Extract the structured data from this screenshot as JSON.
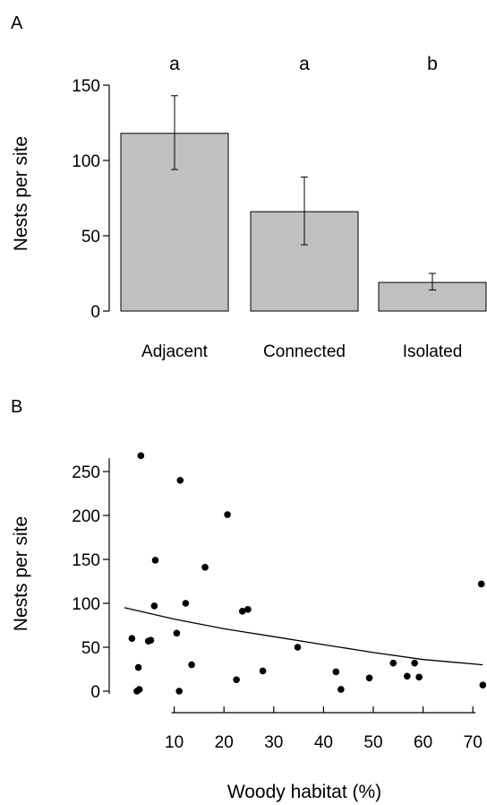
{
  "chart_data": [
    {
      "panel": "A",
      "type": "bar",
      "categories": [
        "Adjacent",
        "Connected",
        "Isolated"
      ],
      "values": [
        118,
        66,
        19
      ],
      "error_low": [
        94,
        44,
        14
      ],
      "error_high": [
        143,
        89,
        25
      ],
      "significance_letters": [
        "a",
        "a",
        "b"
      ],
      "ylabel": "Nests per site",
      "xlabel": "",
      "ylim": [
        0,
        150
      ],
      "yticks": [
        0,
        50,
        100,
        150
      ],
      "bar_color": "#c0c0c0",
      "grid": false
    },
    {
      "panel": "B",
      "type": "scatter",
      "xlabel": "Woody habitat (%)",
      "ylabel": "Nests per site",
      "xlim": [
        0,
        70
      ],
      "ylim": [
        0,
        250
      ],
      "xticks": [
        10,
        20,
        30,
        40,
        50,
        60,
        70
      ],
      "yticks": [
        0,
        50,
        100,
        150,
        200,
        250
      ],
      "points": [
        {
          "x": 1.5,
          "y": 60
        },
        {
          "x": 2.5,
          "y": 0
        },
        {
          "x": 2.8,
          "y": 27
        },
        {
          "x": 3.0,
          "y": 2
        },
        {
          "x": 3.3,
          "y": 268
        },
        {
          "x": 4.8,
          "y": 57
        },
        {
          "x": 5.3,
          "y": 58
        },
        {
          "x": 6.0,
          "y": 97
        },
        {
          "x": 6.2,
          "y": 149
        },
        {
          "x": 10.5,
          "y": 66
        },
        {
          "x": 11.0,
          "y": 0
        },
        {
          "x": 11.2,
          "y": 240
        },
        {
          "x": 12.3,
          "y": 100
        },
        {
          "x": 13.5,
          "y": 30
        },
        {
          "x": 16.2,
          "y": 141
        },
        {
          "x": 20.7,
          "y": 201
        },
        {
          "x": 22.5,
          "y": 13
        },
        {
          "x": 23.7,
          "y": 91
        },
        {
          "x": 24.8,
          "y": 93
        },
        {
          "x": 27.8,
          "y": 23
        },
        {
          "x": 34.8,
          "y": 50
        },
        {
          "x": 42.5,
          "y": 22
        },
        {
          "x": 43.5,
          "y": 2
        },
        {
          "x": 49.2,
          "y": 15
        },
        {
          "x": 54.0,
          "y": 32
        },
        {
          "x": 56.8,
          "y": 17
        },
        {
          "x": 58.3,
          "y": 32
        },
        {
          "x": 59.2,
          "y": 16
        },
        {
          "x": 71.7,
          "y": 122
        },
        {
          "x": 72.0,
          "y": 7
        }
      ],
      "fit_curve": [
        {
          "x": 0,
          "y": 95
        },
        {
          "x": 10,
          "y": 82
        },
        {
          "x": 20,
          "y": 71
        },
        {
          "x": 30,
          "y": 62
        },
        {
          "x": 40,
          "y": 53
        },
        {
          "x": 50,
          "y": 44
        },
        {
          "x": 60,
          "y": 36
        },
        {
          "x": 72,
          "y": 30
        }
      ],
      "grid": false
    }
  ],
  "panels": {
    "a_label": "A",
    "b_label": "B"
  }
}
